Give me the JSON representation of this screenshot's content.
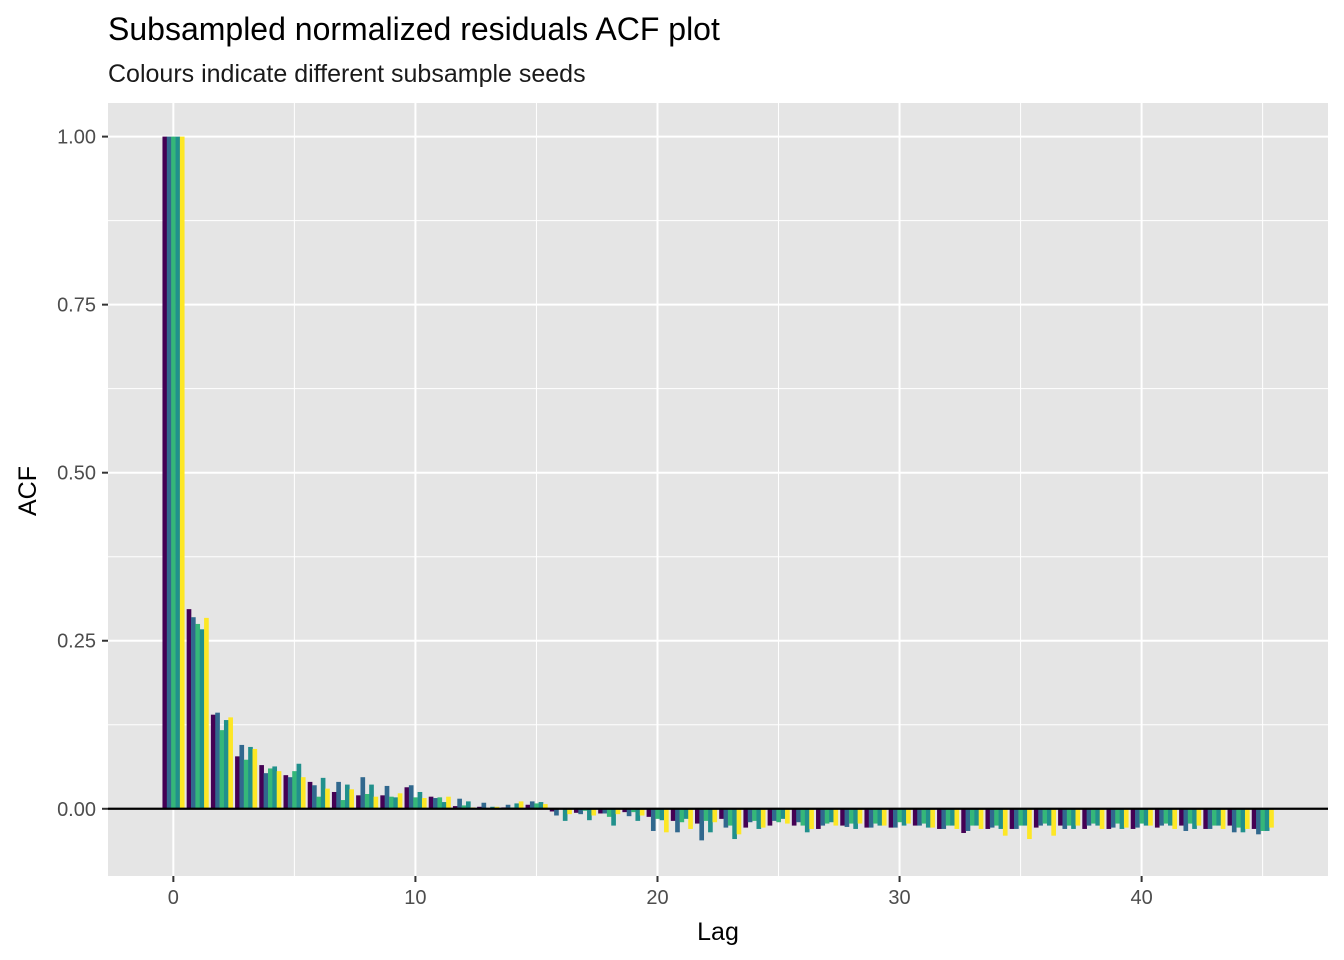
{
  "chart_data": {
    "type": "bar",
    "title": "Subsampled normalized residuals ACF plot",
    "subtitle": "Colours indicate different subsample seeds",
    "xlabel": "Lag",
    "ylabel": "ACF",
    "xlim": [
      -2.7,
      47.7
    ],
    "ylim": [
      -0.1,
      1.05
    ],
    "x_ticks": [
      0,
      10,
      20,
      30,
      40
    ],
    "x_tick_labels": [
      "0",
      "10",
      "20",
      "30",
      "40"
    ],
    "y_ticks": [
      0.0,
      0.25,
      0.5,
      0.75,
      1.0
    ],
    "y_tick_labels": [
      "0.00",
      "0.25",
      "0.50",
      "0.75",
      "1.00"
    ],
    "grid": true,
    "legend": "none",
    "panel_color": "#e5e5e5",
    "grid_color": "#ffffff",
    "zero_line_color": "#000000",
    "series_colors": [
      "#440154",
      "#31688e",
      "#35b779",
      "#21908c",
      "#fde725"
    ],
    "x": [
      0,
      1,
      2,
      3,
      4,
      5,
      6,
      7,
      8,
      9,
      10,
      11,
      12,
      13,
      14,
      15,
      16,
      17,
      18,
      19,
      20,
      21,
      22,
      23,
      24,
      25,
      26,
      27,
      28,
      29,
      30,
      31,
      32,
      33,
      34,
      35,
      36,
      37,
      38,
      39,
      40,
      41,
      42,
      43,
      44,
      45
    ],
    "series": [
      {
        "values": [
          1.0,
          0.297,
          0.14,
          0.078,
          0.065,
          0.05,
          0.04,
          0.025,
          0.02,
          0.02,
          0.032,
          0.018,
          0.004,
          0.003,
          0.002,
          0.006,
          -0.004,
          -0.006,
          -0.007,
          -0.005,
          -0.012,
          -0.018,
          -0.022,
          -0.015,
          -0.028,
          -0.025,
          -0.025,
          -0.03,
          -0.025,
          -0.028,
          -0.028,
          -0.025,
          -0.03,
          -0.036,
          -0.03,
          -0.03,
          -0.028,
          -0.025,
          -0.03,
          -0.03,
          -0.03,
          -0.028,
          -0.025,
          -0.03,
          -0.025,
          -0.03
        ]
      },
      {
        "values": [
          1.0,
          0.285,
          0.143,
          0.095,
          0.053,
          0.047,
          0.035,
          0.04,
          0.047,
          0.034,
          0.035,
          0.016,
          0.015,
          0.009,
          0.006,
          0.011,
          -0.01,
          -0.008,
          -0.007,
          -0.011,
          -0.033,
          -0.035,
          -0.047,
          -0.028,
          -0.02,
          -0.018,
          -0.02,
          -0.025,
          -0.027,
          -0.028,
          -0.028,
          -0.025,
          -0.03,
          -0.033,
          -0.028,
          -0.03,
          -0.025,
          -0.03,
          -0.025,
          -0.028,
          -0.028,
          -0.025,
          -0.033,
          -0.03,
          -0.035,
          -0.038
        ]
      },
      {
        "values": [
          1.0,
          0.275,
          0.117,
          0.073,
          0.06,
          0.056,
          0.018,
          0.013,
          0.022,
          0.018,
          0.017,
          0.017,
          0.005,
          -0.001,
          0.002,
          0.008,
          0.001,
          -0.003,
          -0.012,
          -0.005,
          -0.015,
          -0.02,
          -0.018,
          -0.025,
          -0.018,
          -0.02,
          -0.025,
          -0.022,
          -0.022,
          -0.022,
          -0.02,
          -0.022,
          -0.025,
          -0.025,
          -0.025,
          -0.025,
          -0.022,
          -0.025,
          -0.022,
          -0.022,
          -0.022,
          -0.022,
          -0.022,
          -0.025,
          -0.028,
          -0.033
        ]
      },
      {
        "values": [
          1.0,
          0.267,
          0.132,
          0.092,
          0.063,
          0.067,
          0.046,
          0.036,
          0.036,
          0.017,
          0.025,
          0.01,
          0.011,
          0.003,
          0.008,
          0.01,
          -0.018,
          -0.017,
          -0.025,
          -0.018,
          -0.017,
          -0.015,
          -0.035,
          -0.045,
          -0.03,
          -0.015,
          -0.035,
          -0.02,
          -0.03,
          -0.025,
          -0.025,
          -0.028,
          -0.025,
          -0.025,
          -0.03,
          -0.025,
          -0.025,
          -0.03,
          -0.025,
          -0.03,
          -0.025,
          -0.025,
          -0.03,
          -0.025,
          -0.035,
          -0.033
        ]
      },
      {
        "values": [
          1.0,
          0.284,
          0.136,
          0.089,
          0.056,
          0.047,
          0.03,
          0.029,
          0.018,
          0.023,
          0.016,
          0.018,
          0.002,
          0.003,
          0.011,
          0.007,
          -0.008,
          -0.01,
          -0.008,
          -0.01,
          -0.035,
          -0.03,
          -0.02,
          -0.038,
          -0.028,
          -0.022,
          -0.03,
          -0.025,
          -0.022,
          -0.025,
          -0.022,
          -0.028,
          -0.03,
          -0.03,
          -0.04,
          -0.045,
          -0.04,
          -0.025,
          -0.03,
          -0.028,
          -0.025,
          -0.03,
          -0.025,
          -0.03,
          -0.03,
          -0.028
        ]
      }
    ]
  }
}
